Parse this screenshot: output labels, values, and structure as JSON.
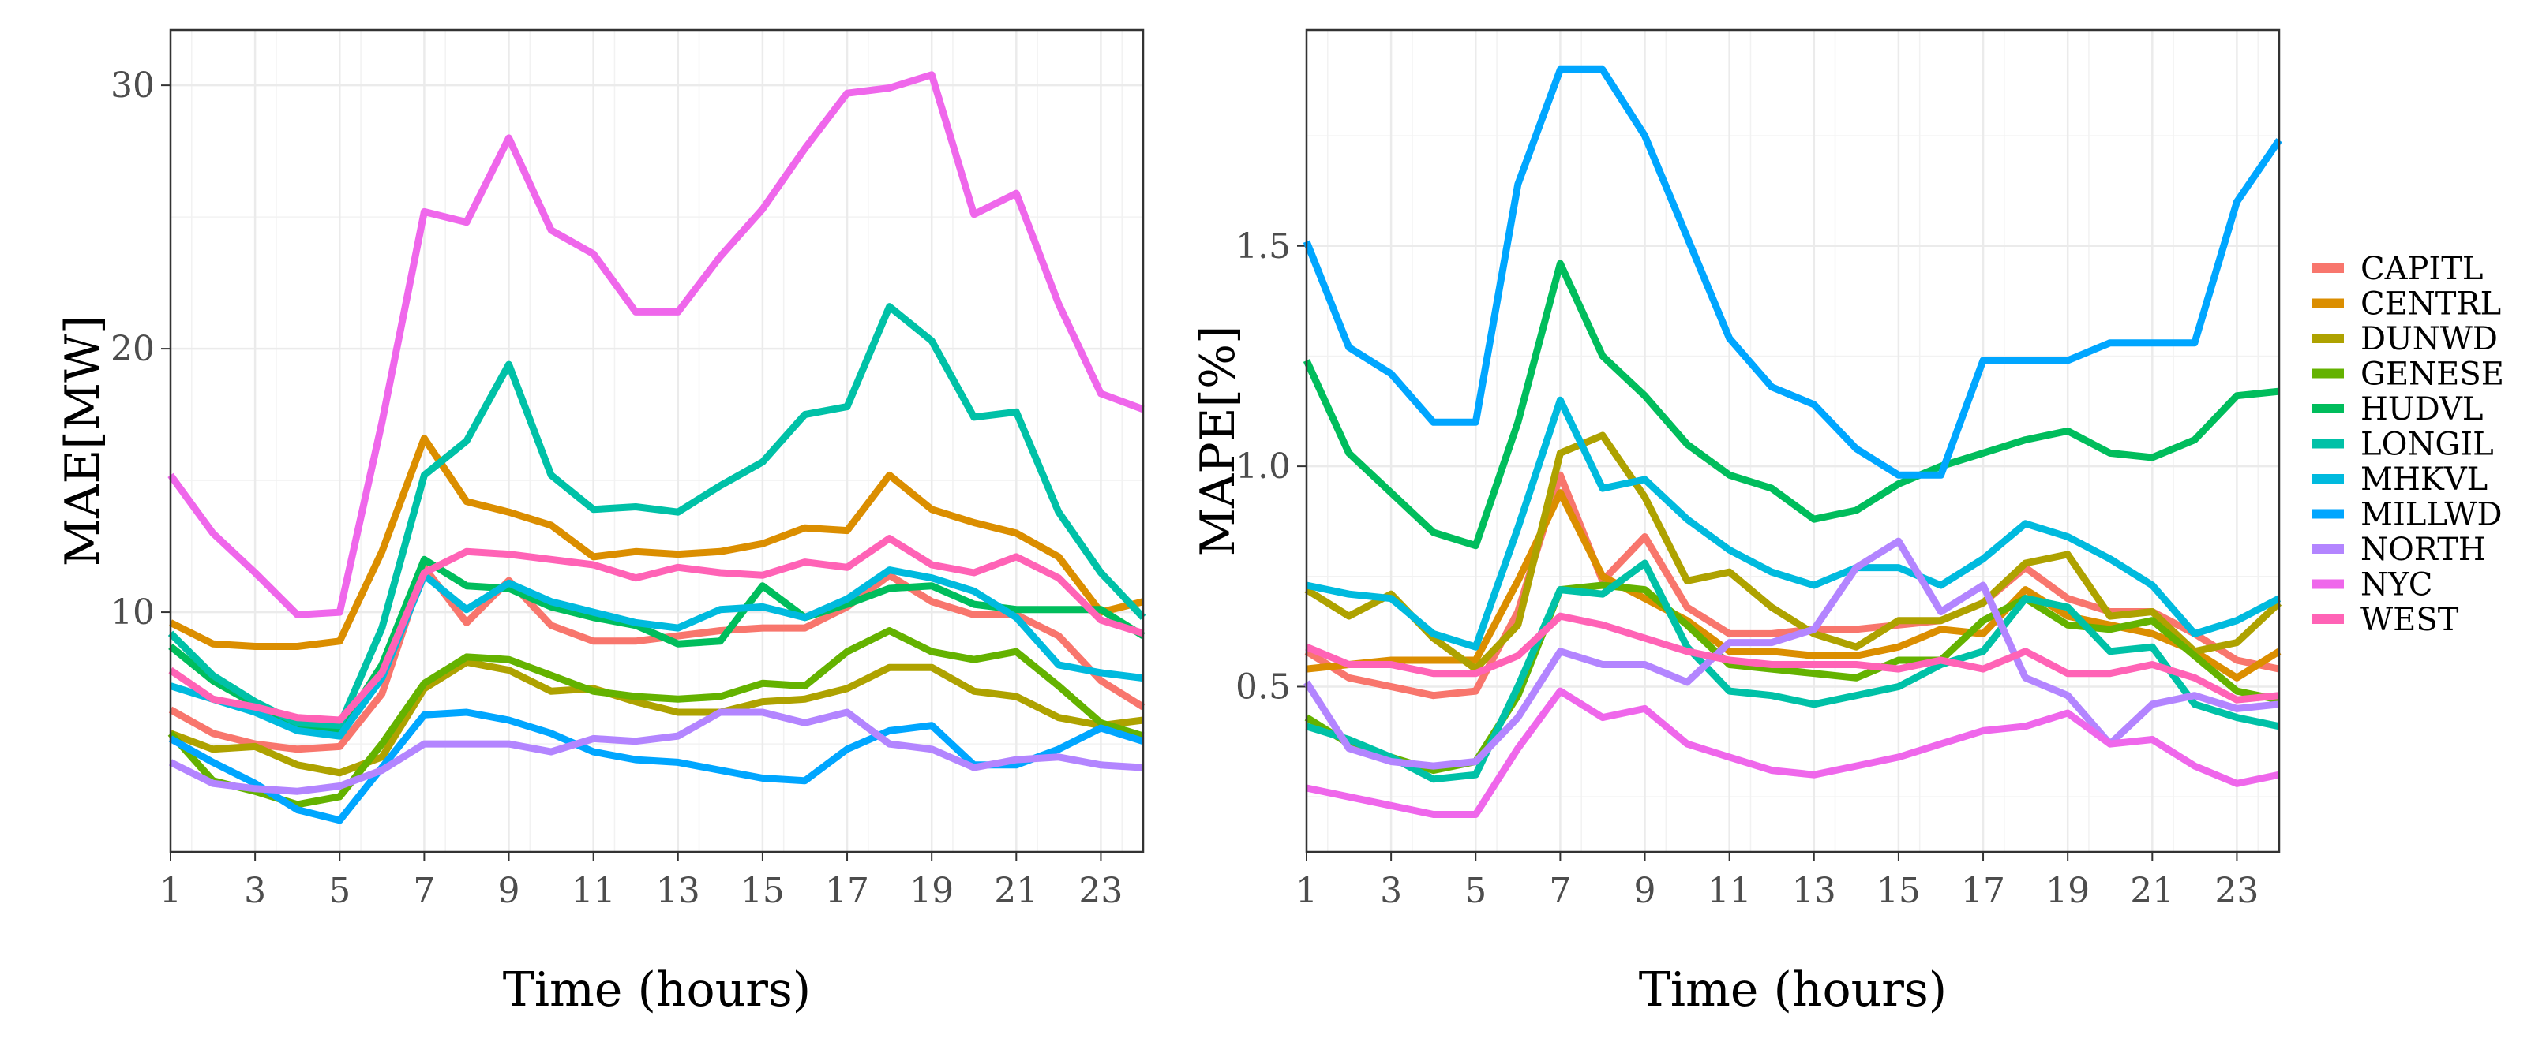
{
  "chart_data": [
    {
      "type": "line",
      "title": "",
      "xlabel": "Time (hours)",
      "ylabel": "MAE[MW]",
      "x": [
        1,
        2,
        3,
        4,
        5,
        6,
        7,
        8,
        9,
        10,
        11,
        12,
        13,
        14,
        15,
        16,
        17,
        18,
        19,
        20,
        21,
        22,
        23,
        24
      ],
      "xticks": [
        1,
        3,
        5,
        7,
        9,
        11,
        13,
        15,
        17,
        19,
        21,
        23
      ],
      "xlim": [
        1,
        24
      ],
      "yticks": [
        10,
        20,
        30
      ],
      "ylim": [
        0.9,
        32.1
      ],
      "grid": true,
      "series": [
        {
          "name": "CAPITL",
          "values": [
            6.3,
            5.4,
            5.0,
            4.8,
            4.9,
            6.9,
            11.7,
            9.6,
            11.2,
            9.5,
            8.9,
            8.9,
            9.1,
            9.3,
            9.4,
            9.4,
            10.2,
            11.4,
            10.4,
            9.9,
            9.9,
            9.1,
            7.4,
            6.4
          ]
        },
        {
          "name": "CENTRL",
          "values": [
            9.6,
            8.8,
            8.7,
            8.7,
            8.9,
            12.3,
            16.6,
            14.2,
            13.8,
            13.3,
            12.1,
            12.3,
            12.2,
            12.3,
            12.6,
            13.2,
            13.1,
            15.2,
            13.9,
            13.4,
            13.0,
            12.1,
            10.0,
            10.4
          ]
        },
        {
          "name": "DUNWD",
          "values": [
            5.4,
            4.8,
            4.9,
            4.2,
            3.9,
            4.5,
            7.1,
            8.1,
            7.8,
            7.0,
            7.1,
            6.6,
            6.2,
            6.2,
            6.6,
            6.7,
            7.1,
            7.9,
            7.9,
            7.0,
            6.8,
            6.0,
            5.7,
            5.9
          ]
        },
        {
          "name": "GENESE",
          "values": [
            5.4,
            3.6,
            3.2,
            2.7,
            3.0,
            5.0,
            7.3,
            8.3,
            8.2,
            7.6,
            7.0,
            6.8,
            6.7,
            6.8,
            7.3,
            7.2,
            8.5,
            9.3,
            8.5,
            8.2,
            8.5,
            7.2,
            5.8,
            5.3
          ]
        },
        {
          "name": "HUDVL",
          "values": [
            8.7,
            7.4,
            6.5,
            5.7,
            5.5,
            8.0,
            12.0,
            11.0,
            10.9,
            10.2,
            9.8,
            9.5,
            8.8,
            8.9,
            11.0,
            9.8,
            10.3,
            10.9,
            11.0,
            10.3,
            10.1,
            10.1,
            10.1,
            9.1
          ]
        },
        {
          "name": "LONGIL",
          "values": [
            9.2,
            7.6,
            6.6,
            5.8,
            5.7,
            9.4,
            15.2,
            16.5,
            19.4,
            15.2,
            13.9,
            14.0,
            13.8,
            14.8,
            15.7,
            17.5,
            17.8,
            21.6,
            20.3,
            17.4,
            17.6,
            13.8,
            11.5,
            9.8
          ]
        },
        {
          "name": "MHKVL",
          "values": [
            7.2,
            6.7,
            6.2,
            5.5,
            5.3,
            7.5,
            11.4,
            10.1,
            11.1,
            10.4,
            10.0,
            9.6,
            9.4,
            10.1,
            10.2,
            9.8,
            10.5,
            11.6,
            11.3,
            10.8,
            9.8,
            8.0,
            7.7,
            7.5
          ]
        },
        {
          "name": "MILLWD",
          "values": [
            5.2,
            4.3,
            3.5,
            2.5,
            2.1,
            4.1,
            6.1,
            6.2,
            5.9,
            5.4,
            4.7,
            4.4,
            4.3,
            4.0,
            3.7,
            3.6,
            4.8,
            5.5,
            5.7,
            4.2,
            4.2,
            4.8,
            5.6,
            5.1
          ]
        },
        {
          "name": "NORTH",
          "values": [
            4.3,
            3.5,
            3.3,
            3.2,
            3.4,
            4.0,
            5.0,
            5.0,
            5.0,
            4.7,
            5.2,
            5.1,
            5.3,
            6.2,
            6.2,
            5.8,
            6.2,
            5.0,
            4.8,
            4.1,
            4.4,
            4.5,
            4.2,
            4.1
          ]
        },
        {
          "name": "NYC",
          "values": [
            15.2,
            13.0,
            11.5,
            9.9,
            10.0,
            17.2,
            25.2,
            24.8,
            28.0,
            24.5,
            23.6,
            21.4,
            21.4,
            23.5,
            25.3,
            27.6,
            29.7,
            29.9,
            30.4,
            25.1,
            25.9,
            21.7,
            18.3,
            17.7
          ]
        },
        {
          "name": "WEST",
          "values": [
            7.8,
            6.7,
            6.4,
            6.0,
            5.9,
            7.7,
            11.5,
            12.3,
            12.2,
            12.0,
            11.8,
            11.3,
            11.7,
            11.5,
            11.4,
            11.9,
            11.7,
            12.8,
            11.8,
            11.5,
            12.1,
            11.3,
            9.7,
            9.2
          ]
        }
      ]
    },
    {
      "type": "line",
      "title": "",
      "xlabel": "Time (hours)",
      "ylabel": "MAPE[%]",
      "x": [
        1,
        2,
        3,
        4,
        5,
        6,
        7,
        8,
        9,
        10,
        11,
        12,
        13,
        14,
        15,
        16,
        17,
        18,
        19,
        20,
        21,
        22,
        23,
        24
      ],
      "xticks": [
        1,
        3,
        5,
        7,
        9,
        11,
        13,
        15,
        17,
        19,
        21,
        23
      ],
      "xlim": [
        1,
        24
      ],
      "yticks": [
        0.5,
        1.0,
        1.5
      ],
      "yticklabels": [
        "0.5",
        "1.0",
        "1.5"
      ],
      "ylim": [
        0.125,
        1.99
      ],
      "grid": true,
      "series": [
        {
          "name": "CAPITL",
          "values": [
            0.58,
            0.52,
            0.5,
            0.48,
            0.49,
            0.67,
            0.98,
            0.74,
            0.84,
            0.68,
            0.62,
            0.62,
            0.63,
            0.63,
            0.64,
            0.65,
            0.69,
            0.77,
            0.7,
            0.67,
            0.67,
            0.62,
            0.56,
            0.54
          ]
        },
        {
          "name": "CENTRL",
          "values": [
            0.54,
            0.55,
            0.56,
            0.56,
            0.56,
            0.74,
            0.94,
            0.75,
            0.7,
            0.65,
            0.58,
            0.58,
            0.57,
            0.57,
            0.59,
            0.63,
            0.62,
            0.72,
            0.66,
            0.64,
            0.62,
            0.58,
            0.52,
            0.58
          ]
        },
        {
          "name": "DUNWD",
          "values": [
            0.72,
            0.66,
            0.71,
            0.61,
            0.54,
            0.64,
            1.03,
            1.07,
            0.93,
            0.74,
            0.76,
            0.68,
            0.62,
            0.59,
            0.65,
            0.65,
            0.69,
            0.78,
            0.8,
            0.66,
            0.67,
            0.58,
            0.6,
            0.69
          ]
        },
        {
          "name": "GENESE",
          "values": [
            0.43,
            0.37,
            0.34,
            0.31,
            0.33,
            0.48,
            0.72,
            0.73,
            0.72,
            0.64,
            0.55,
            0.54,
            0.53,
            0.52,
            0.56,
            0.56,
            0.65,
            0.7,
            0.64,
            0.63,
            0.65,
            0.57,
            0.49,
            0.47
          ]
        },
        {
          "name": "HUDVL",
          "values": [
            1.24,
            1.03,
            0.94,
            0.85,
            0.82,
            1.1,
            1.46,
            1.25,
            1.16,
            1.05,
            0.98,
            0.95,
            0.88,
            0.9,
            0.96,
            1.0,
            1.03,
            1.06,
            1.08,
            1.03,
            1.02,
            1.06,
            1.16,
            1.17
          ]
        },
        {
          "name": "LONGIL",
          "values": [
            0.41,
            0.38,
            0.34,
            0.29,
            0.3,
            0.5,
            0.72,
            0.71,
            0.78,
            0.59,
            0.49,
            0.48,
            0.46,
            0.48,
            0.5,
            0.55,
            0.58,
            0.7,
            0.68,
            0.58,
            0.59,
            0.46,
            0.43,
            0.41
          ]
        },
        {
          "name": "MHKVL",
          "values": [
            0.73,
            0.71,
            0.7,
            0.62,
            0.59,
            0.86,
            1.15,
            0.95,
            0.97,
            0.88,
            0.81,
            0.76,
            0.73,
            0.77,
            0.77,
            0.73,
            0.79,
            0.87,
            0.84,
            0.79,
            0.73,
            0.62,
            0.65,
            0.7
          ]
        },
        {
          "name": "MILLWD",
          "values": [
            1.51,
            1.27,
            1.21,
            1.1,
            1.1,
            1.64,
            1.9,
            1.9,
            1.75,
            1.52,
            1.29,
            1.18,
            1.14,
            1.04,
            0.98,
            0.98,
            1.24,
            1.24,
            1.24,
            1.28,
            1.28,
            1.28,
            1.6,
            1.74
          ]
        },
        {
          "name": "NORTH",
          "values": [
            0.51,
            0.36,
            0.33,
            0.32,
            0.33,
            0.43,
            0.58,
            0.55,
            0.55,
            0.51,
            0.6,
            0.6,
            0.63,
            0.77,
            0.83,
            0.67,
            0.73,
            0.52,
            0.48,
            0.37,
            0.46,
            0.48,
            0.45,
            0.46
          ]
        },
        {
          "name": "NYC",
          "values": [
            0.27,
            0.25,
            0.23,
            0.21,
            0.21,
            0.36,
            0.49,
            0.43,
            0.45,
            0.37,
            0.34,
            0.31,
            0.3,
            0.32,
            0.34,
            0.37,
            0.4,
            0.41,
            0.44,
            0.37,
            0.38,
            0.32,
            0.28,
            0.3
          ]
        },
        {
          "name": "WEST",
          "values": [
            0.59,
            0.55,
            0.55,
            0.53,
            0.53,
            0.57,
            0.66,
            0.64,
            0.61,
            0.58,
            0.56,
            0.55,
            0.55,
            0.55,
            0.54,
            0.56,
            0.54,
            0.58,
            0.53,
            0.53,
            0.55,
            0.52,
            0.47,
            0.48
          ]
        }
      ]
    }
  ],
  "legend": {
    "position": "right",
    "items": [
      {
        "name": "CAPITL",
        "color": "#F8766D"
      },
      {
        "name": "CENTRL",
        "color": "#DB8E00"
      },
      {
        "name": "DUNWD",
        "color": "#AEA200"
      },
      {
        "name": "GENESE",
        "color": "#64B200"
      },
      {
        "name": "HUDVL",
        "color": "#00BD5C"
      },
      {
        "name": "LONGIL",
        "color": "#00C1A7"
      },
      {
        "name": "MHKVL",
        "color": "#00BADE"
      },
      {
        "name": "MILLWD",
        "color": "#00A6FF"
      },
      {
        "name": "NORTH",
        "color": "#B385FF"
      },
      {
        "name": "NYC",
        "color": "#EF67EB"
      },
      {
        "name": "WEST",
        "color": "#FF63B6"
      }
    ]
  }
}
